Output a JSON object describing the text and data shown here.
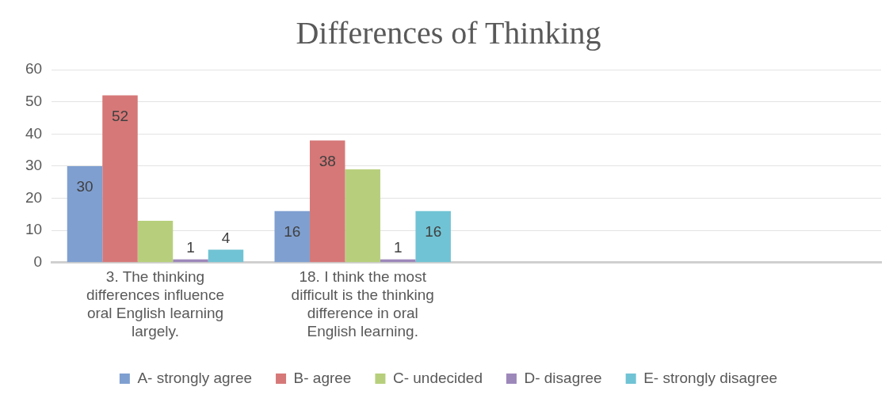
{
  "chart_data": {
    "type": "bar",
    "title": "Differences of Thinking",
    "categories": [
      "3. The thinking differences influence oral English learning largely.",
      "18. I think the most difficult is the thinking difference in oral English learning.",
      null,
      null
    ],
    "series": [
      {
        "name": "A- strongly agree",
        "color": "#7f9fd0",
        "values": [
          30,
          16,
          null,
          null
        ],
        "value_labels": [
          "30",
          "16",
          null,
          null
        ]
      },
      {
        "name": "B- agree",
        "color": "#d67878",
        "values": [
          52,
          38,
          null,
          null
        ],
        "value_labels": [
          "52",
          "38",
          null,
          null
        ]
      },
      {
        "name": "C- undecided",
        "color": "#b7cf7c",
        "values": [
          13,
          29,
          null,
          null
        ],
        "value_labels": [
          null,
          null,
          null,
          null
        ]
      },
      {
        "name": "D- disagree",
        "color": "#9d88ba",
        "values": [
          1,
          1,
          null,
          null
        ],
        "value_labels": [
          "1",
          "1",
          null,
          null
        ]
      },
      {
        "name": "E- strongly disagree",
        "color": "#70c3d4",
        "values": [
          4,
          16,
          null,
          null
        ],
        "value_labels": [
          "4",
          "16",
          null,
          null
        ]
      }
    ],
    "ylim": [
      0,
      60
    ],
    "yticks": [
      0,
      10,
      20,
      30,
      40,
      50,
      60
    ],
    "grid": "y",
    "legend": "bottom"
  }
}
